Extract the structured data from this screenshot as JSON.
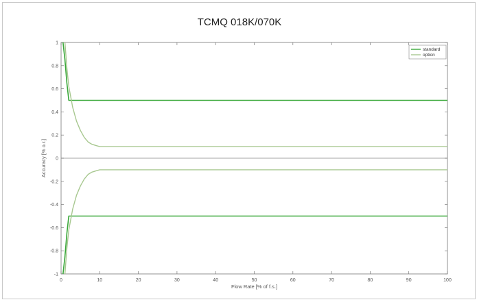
{
  "chart_data": {
    "type": "line",
    "title": "TCMQ 018K/070K",
    "xlabel": "Flow Rate [% of f.s.]",
    "ylabel": "Accuracy [% o.r.]",
    "xlim": [
      0,
      100
    ],
    "ylim": [
      -1,
      1
    ],
    "xticks": [
      0,
      10,
      20,
      30,
      40,
      50,
      60,
      70,
      80,
      90,
      100
    ],
    "yticks": [
      -1,
      -0.8,
      -0.6,
      -0.4,
      -0.2,
      0,
      0.2,
      0.4,
      0.6,
      0.8,
      1
    ],
    "grid": false,
    "legend_position": "top-right",
    "series": [
      {
        "name": "standard",
        "color": "#3aa83a",
        "x": [
          0.5,
          1,
          1.5,
          2,
          100
        ],
        "y_upper": [
          1.0,
          0.85,
          0.65,
          0.5,
          0.5
        ],
        "y_lower": [
          -1.0,
          -0.85,
          -0.65,
          -0.5,
          -0.5
        ]
      },
      {
        "name": "option",
        "color": "#a8c890",
        "x": [
          1,
          1.5,
          2,
          3,
          4,
          5,
          6,
          7,
          8,
          9,
          10,
          100
        ],
        "y_upper": [
          1.0,
          0.78,
          0.62,
          0.44,
          0.32,
          0.24,
          0.18,
          0.14,
          0.12,
          0.11,
          0.1,
          0.1
        ],
        "y_lower": [
          -1.0,
          -0.78,
          -0.62,
          -0.44,
          -0.32,
          -0.24,
          -0.18,
          -0.14,
          -0.12,
          -0.11,
          -0.1,
          -0.1
        ]
      }
    ],
    "zero_line_color": "#b8b8b8"
  }
}
